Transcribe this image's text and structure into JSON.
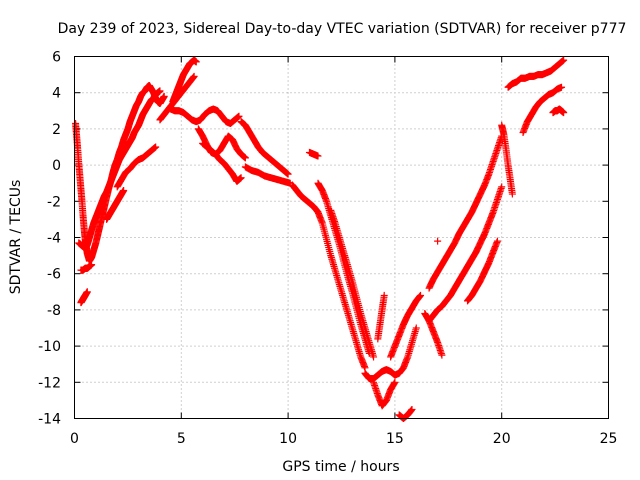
{
  "chart_data": {
    "type": "scatter",
    "title": "Day 239 of 2023, Sidereal Day-to-day VTEC variation (SDTVAR) for receiver p777",
    "xlabel": "GPS time / hours",
    "ylabel": "SDTVAR / TECUs",
    "xlim": [
      0,
      25
    ],
    "ylim": [
      -14,
      6
    ],
    "xticks": [
      0,
      5,
      10,
      15,
      20,
      25
    ],
    "yticks": [
      -14,
      -12,
      -10,
      -8,
      -6,
      -4,
      -2,
      0,
      2,
      4,
      6
    ],
    "grid": true,
    "legend": "none",
    "marker": "+",
    "color": "#ff0000",
    "series": [
      {
        "x": [
          0.05,
          0.1,
          0.15,
          0.2,
          0.25,
          0.3,
          0.35,
          0.4,
          0.45,
          0.5,
          0.55,
          0.6,
          0.7,
          0.8,
          0.9,
          1.0,
          1.1,
          1.2,
          1.3,
          1.4,
          1.5,
          1.6,
          1.7,
          1.8,
          1.9,
          2.0,
          2.1,
          2.2,
          2.3,
          2.4,
          2.5,
          2.6,
          2.7,
          2.8,
          2.9,
          3.0,
          3.1,
          3.2,
          3.3,
          3.4,
          3.5,
          3.6,
          3.7,
          3.8,
          3.9,
          4.0,
          4.1,
          4.2
        ],
        "y": [
          2.3,
          1.6,
          0.9,
          0.1,
          -0.6,
          -1.3,
          -2.0,
          -2.8,
          -3.5,
          -4.1,
          -4.5,
          -4.9,
          -5.3,
          -5.1,
          -4.7,
          -4.3,
          -3.8,
          -3.3,
          -2.8,
          -2.3,
          -1.8,
          -1.3,
          -0.9,
          -0.4,
          0.0,
          0.3,
          0.7,
          1.0,
          1.4,
          1.7,
          2.0,
          2.4,
          2.7,
          3.0,
          3.3,
          3.5,
          3.8,
          4.0,
          4.1,
          4.3,
          4.4,
          4.2,
          4.0,
          3.7,
          3.5,
          3.4,
          3.6,
          3.8
        ]
      },
      {
        "x": [
          0.2,
          0.3,
          0.4,
          0.5,
          0.6,
          0.7,
          0.8,
          0.9,
          1.0,
          1.1,
          1.2,
          1.3,
          1.4,
          1.5,
          1.6,
          1.7,
          1.8,
          1.9,
          2.0,
          2.1,
          2.2,
          2.3,
          2.4,
          2.5,
          2.6,
          2.7,
          2.8,
          2.9,
          3.0,
          3.1,
          3.2,
          3.3,
          3.4,
          3.5,
          3.6,
          3.7,
          3.8,
          3.9,
          4.0
        ],
        "y": [
          -4.3,
          -4.4,
          -4.5,
          -4.6,
          -4.4,
          -4.0,
          -3.6,
          -3.2,
          -2.9,
          -2.6,
          -2.3,
          -2.0,
          -1.7,
          -1.5,
          -1.2,
          -0.9,
          -0.6,
          -0.3,
          0.0,
          0.3,
          0.5,
          0.7,
          0.9,
          1.1,
          1.3,
          1.5,
          1.8,
          2.0,
          2.2,
          2.5,
          2.8,
          3.0,
          3.2,
          3.4,
          3.6,
          3.7,
          3.9,
          4.0,
          4.1
        ]
      },
      {
        "x": [
          0.3,
          0.35,
          0.4,
          0.45,
          0.5,
          0.6
        ],
        "y": [
          -7.6,
          -7.5,
          -7.4,
          -7.3,
          -7.2,
          -7.0
        ]
      },
      {
        "x": [
          0.3,
          0.4,
          0.5,
          0.6,
          0.7,
          0.8
        ],
        "y": [
          -5.8,
          -5.8,
          -5.7,
          -5.7,
          -5.6,
          -5.5
        ]
      },
      {
        "x": [
          1.5,
          1.6,
          1.7,
          1.8,
          1.9,
          2.0,
          2.1,
          2.2,
          2.3
        ],
        "y": [
          -3.0,
          -2.8,
          -2.6,
          -2.4,
          -2.2,
          -2.0,
          -1.8,
          -1.6,
          -1.4
        ]
      },
      {
        "x": [
          2.0,
          2.2,
          2.4,
          2.6,
          2.8,
          3.0,
          3.2,
          3.4,
          3.6,
          3.8
        ],
        "y": [
          -1.2,
          -0.8,
          -0.4,
          -0.2,
          0.1,
          0.3,
          0.4,
          0.6,
          0.8,
          1.0
        ]
      },
      {
        "x": [
          4.0,
          4.2,
          4.4,
          4.6,
          4.8,
          5.0,
          5.2,
          5.4,
          5.6
        ],
        "y": [
          2.5,
          2.8,
          3.1,
          3.4,
          3.7,
          4.0,
          4.3,
          4.6,
          4.9
        ]
      },
      {
        "x": [
          4.6,
          4.7,
          4.8,
          4.9,
          5.0,
          5.1,
          5.2,
          5.3,
          5.4,
          5.5,
          5.6,
          5.7
        ],
        "y": [
          3.5,
          3.8,
          4.1,
          4.4,
          4.7,
          5.0,
          5.2,
          5.4,
          5.6,
          5.7,
          5.8,
          5.7
        ]
      },
      {
        "x": [
          4.5,
          4.7,
          4.9,
          5.1,
          5.3,
          5.5,
          5.7,
          5.9,
          6.1,
          6.3,
          6.5,
          6.7,
          6.9,
          7.1,
          7.3,
          7.5,
          7.7
        ],
        "y": [
          3.1,
          3.0,
          3.0,
          2.9,
          2.7,
          2.5,
          2.4,
          2.5,
          2.8,
          3.0,
          3.1,
          3.0,
          2.7,
          2.4,
          2.3,
          2.5,
          2.7
        ]
      },
      {
        "x": [
          5.8,
          6.0,
          6.2,
          6.4,
          6.6,
          6.8,
          7.0,
          7.2,
          7.4,
          7.6,
          7.8,
          8.0
        ],
        "y": [
          2.0,
          1.6,
          1.1,
          0.7,
          0.6,
          0.8,
          1.2,
          1.6,
          1.4,
          0.9,
          0.6,
          0.4
        ]
      },
      {
        "x": [
          6.0,
          6.2,
          6.4,
          6.6,
          6.8,
          7.0,
          7.2,
          7.4,
          7.6,
          7.8
        ],
        "y": [
          1.2,
          1.0,
          0.8,
          0.6,
          0.3,
          0.1,
          -0.2,
          -0.5,
          -0.9,
          -0.7
        ]
      },
      {
        "x": [
          7.8,
          8.0,
          8.2,
          8.4,
          8.6,
          8.8,
          9.0,
          9.2,
          9.4,
          9.6,
          9.8,
          10.0
        ],
        "y": [
          2.4,
          2.2,
          1.8,
          1.4,
          1.0,
          0.7,
          0.5,
          0.3,
          0.1,
          -0.1,
          -0.3,
          -0.5
        ]
      },
      {
        "x": [
          8.0,
          8.3,
          8.6,
          8.9,
          9.2,
          9.5,
          9.8,
          10.1
        ],
        "y": [
          -0.1,
          -0.3,
          -0.4,
          -0.6,
          -0.7,
          -0.8,
          -0.9,
          -1.0
        ]
      },
      {
        "x": [
          10.2,
          10.4,
          10.6,
          10.8,
          11.0,
          11.2,
          11.4,
          11.6,
          11.8,
          12.0,
          12.2,
          12.4,
          12.6,
          12.8,
          13.0,
          13.2,
          13.4,
          13.6
        ],
        "y": [
          -1.1,
          -1.4,
          -1.7,
          -1.9,
          -2.1,
          -2.3,
          -2.6,
          -3.2,
          -4.1,
          -5.0,
          -5.8,
          -6.6,
          -7.4,
          -8.2,
          -9.0,
          -9.8,
          -10.6,
          -11.2
        ]
      },
      {
        "x": [
          11.0,
          11.2,
          11.4
        ],
        "y": [
          0.7,
          0.6,
          0.5
        ]
      },
      {
        "x": [
          11.4,
          11.6,
          11.8,
          12.0,
          12.2,
          12.4,
          12.6,
          12.8,
          13.0,
          13.2,
          13.4,
          13.6,
          13.8
        ],
        "y": [
          -1.0,
          -1.4,
          -2.0,
          -2.8,
          -3.6,
          -4.4,
          -5.3,
          -6.2,
          -7.0,
          -7.9,
          -8.8,
          -9.6,
          -10.4
        ]
      },
      {
        "x": [
          12.0,
          12.2,
          12.4,
          12.6,
          12.8,
          13.0,
          13.2,
          13.4,
          13.6,
          13.8,
          14.0
        ],
        "y": [
          -2.5,
          -3.2,
          -4.0,
          -4.8,
          -5.6,
          -6.4,
          -7.3,
          -8.2,
          -9.0,
          -9.8,
          -10.6
        ]
      },
      {
        "x": [
          13.6,
          13.8,
          14.0,
          14.2,
          14.4,
          14.6,
          14.8,
          15.0,
          15.2,
          15.4,
          15.6,
          15.8,
          16.0
        ],
        "y": [
          -11.5,
          -11.8,
          -11.8,
          -11.6,
          -11.4,
          -11.3,
          -11.4,
          -11.6,
          -11.5,
          -11.2,
          -10.6,
          -9.8,
          -9.0
        ]
      },
      {
        "x": [
          14.0,
          14.2,
          14.4,
          14.6,
          14.8,
          15.0
        ],
        "y": [
          -12.0,
          -12.7,
          -13.3,
          -13.0,
          -12.4,
          -12.0
        ]
      },
      {
        "x": [
          14.8,
          15.0,
          15.2,
          15.4,
          15.6,
          15.8,
          16.0,
          16.2
        ],
        "y": [
          -10.6,
          -10.0,
          -9.4,
          -8.8,
          -8.3,
          -7.9,
          -7.5,
          -7.2
        ]
      },
      {
        "x": [
          15.2,
          15.4,
          15.6,
          15.8
        ],
        "y": [
          -13.8,
          -14.0,
          -13.8,
          -13.5
        ]
      },
      {
        "x": [
          14.2,
          14.3,
          14.4,
          14.5
        ],
        "y": [
          -9.6,
          -8.8,
          -8.0,
          -7.2
        ]
      },
      {
        "x": [
          16.4,
          16.6,
          16.8,
          17.0,
          17.2
        ],
        "y": [
          -8.2,
          -8.6,
          -9.2,
          -9.8,
          -10.5
        ]
      },
      {
        "x": [
          16.6,
          16.8,
          17.0,
          17.2,
          17.4,
          17.6,
          17.8,
          18.0,
          18.2,
          18.4,
          18.6,
          18.8,
          19.0,
          19.2,
          19.4,
          19.6,
          19.8,
          20.0
        ],
        "y": [
          -6.8,
          -6.3,
          -5.9,
          -5.5,
          -5.1,
          -4.7,
          -4.3,
          -3.8,
          -3.4,
          -3.0,
          -2.6,
          -2.1,
          -1.6,
          -1.1,
          -0.5,
          0.2,
          0.9,
          1.6
        ]
      },
      {
        "x": [
          16.6,
          16.8,
          17.0,
          17.2,
          17.4,
          17.6,
          17.8,
          18.0,
          18.2,
          18.4,
          18.6,
          18.8,
          19.0,
          19.2,
          19.4,
          19.6,
          19.8,
          20.0
        ],
        "y": [
          -8.6,
          -8.3,
          -8.0,
          -7.8,
          -7.5,
          -7.2,
          -6.8,
          -6.4,
          -6.0,
          -5.6,
          -5.2,
          -4.8,
          -4.3,
          -3.8,
          -3.2,
          -2.6,
          -1.9,
          -1.2
        ]
      },
      {
        "x": [
          17.0
        ],
        "y": [
          -4.2
        ]
      },
      {
        "x": [
          18.4,
          18.6,
          18.8,
          19.0,
          19.2,
          19.4,
          19.6,
          19.8
        ],
        "y": [
          -7.5,
          -7.2,
          -6.8,
          -6.4,
          -5.9,
          -5.4,
          -4.8,
          -4.2
        ]
      },
      {
        "x": [
          20.0,
          20.1,
          20.2,
          20.3,
          20.4,
          20.5
        ],
        "y": [
          2.2,
          1.7,
          0.9,
          0.0,
          -0.8,
          -1.6
        ]
      },
      {
        "x": [
          20.3,
          20.5,
          20.7,
          20.9,
          21.1,
          21.3,
          21.5,
          21.7,
          21.9,
          22.1,
          22.3,
          22.5,
          22.7,
          22.9
        ],
        "y": [
          4.3,
          4.5,
          4.6,
          4.8,
          4.8,
          4.9,
          4.9,
          5.0,
          5.0,
          5.1,
          5.2,
          5.4,
          5.6,
          5.8
        ]
      },
      {
        "x": [
          21.0,
          21.2,
          21.4,
          21.6,
          21.8,
          22.0,
          22.2,
          22.4,
          22.6,
          22.8
        ],
        "y": [
          1.8,
          2.4,
          2.8,
          3.2,
          3.5,
          3.7,
          3.9,
          4.0,
          4.2,
          4.3
        ]
      },
      {
        "x": [
          22.4,
          22.5,
          22.6,
          22.7,
          22.8,
          22.9
        ],
        "y": [
          2.9,
          3.0,
          3.0,
          3.1,
          3.0,
          2.9
        ]
      }
    ]
  }
}
